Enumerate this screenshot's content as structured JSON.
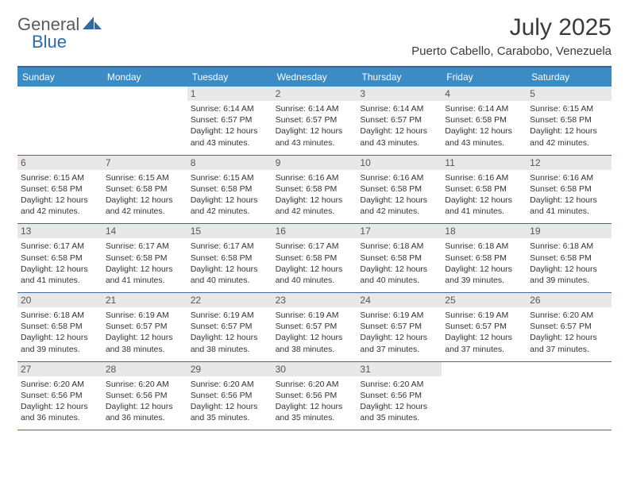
{
  "logo": {
    "part1": "General",
    "part2": "Blue"
  },
  "title": "July 2025",
  "location": "Puerto Cabello, Carabobo, Venezuela",
  "colors": {
    "header_bg": "#3b8bc4",
    "border": "#2f6aa8",
    "daynum_bg": "#e8e8e8",
    "text": "#333333",
    "logo_gray": "#5a5a5a",
    "logo_blue": "#2f6aa8"
  },
  "day_names": [
    "Sunday",
    "Monday",
    "Tuesday",
    "Wednesday",
    "Thursday",
    "Friday",
    "Saturday"
  ],
  "weeks": [
    [
      {
        "n": "",
        "sr": "",
        "ss": "",
        "dl": ""
      },
      {
        "n": "",
        "sr": "",
        "ss": "",
        "dl": ""
      },
      {
        "n": "1",
        "sr": "6:14 AM",
        "ss": "6:57 PM",
        "dl": "12 hours and 43 minutes."
      },
      {
        "n": "2",
        "sr": "6:14 AM",
        "ss": "6:57 PM",
        "dl": "12 hours and 43 minutes."
      },
      {
        "n": "3",
        "sr": "6:14 AM",
        "ss": "6:57 PM",
        "dl": "12 hours and 43 minutes."
      },
      {
        "n": "4",
        "sr": "6:14 AM",
        "ss": "6:58 PM",
        "dl": "12 hours and 43 minutes."
      },
      {
        "n": "5",
        "sr": "6:15 AM",
        "ss": "6:58 PM",
        "dl": "12 hours and 42 minutes."
      }
    ],
    [
      {
        "n": "6",
        "sr": "6:15 AM",
        "ss": "6:58 PM",
        "dl": "12 hours and 42 minutes."
      },
      {
        "n": "7",
        "sr": "6:15 AM",
        "ss": "6:58 PM",
        "dl": "12 hours and 42 minutes."
      },
      {
        "n": "8",
        "sr": "6:15 AM",
        "ss": "6:58 PM",
        "dl": "12 hours and 42 minutes."
      },
      {
        "n": "9",
        "sr": "6:16 AM",
        "ss": "6:58 PM",
        "dl": "12 hours and 42 minutes."
      },
      {
        "n": "10",
        "sr": "6:16 AM",
        "ss": "6:58 PM",
        "dl": "12 hours and 42 minutes."
      },
      {
        "n": "11",
        "sr": "6:16 AM",
        "ss": "6:58 PM",
        "dl": "12 hours and 41 minutes."
      },
      {
        "n": "12",
        "sr": "6:16 AM",
        "ss": "6:58 PM",
        "dl": "12 hours and 41 minutes."
      }
    ],
    [
      {
        "n": "13",
        "sr": "6:17 AM",
        "ss": "6:58 PM",
        "dl": "12 hours and 41 minutes."
      },
      {
        "n": "14",
        "sr": "6:17 AM",
        "ss": "6:58 PM",
        "dl": "12 hours and 41 minutes."
      },
      {
        "n": "15",
        "sr": "6:17 AM",
        "ss": "6:58 PM",
        "dl": "12 hours and 40 minutes."
      },
      {
        "n": "16",
        "sr": "6:17 AM",
        "ss": "6:58 PM",
        "dl": "12 hours and 40 minutes."
      },
      {
        "n": "17",
        "sr": "6:18 AM",
        "ss": "6:58 PM",
        "dl": "12 hours and 40 minutes."
      },
      {
        "n": "18",
        "sr": "6:18 AM",
        "ss": "6:58 PM",
        "dl": "12 hours and 39 minutes."
      },
      {
        "n": "19",
        "sr": "6:18 AM",
        "ss": "6:58 PM",
        "dl": "12 hours and 39 minutes."
      }
    ],
    [
      {
        "n": "20",
        "sr": "6:18 AM",
        "ss": "6:58 PM",
        "dl": "12 hours and 39 minutes."
      },
      {
        "n": "21",
        "sr": "6:19 AM",
        "ss": "6:57 PM",
        "dl": "12 hours and 38 minutes."
      },
      {
        "n": "22",
        "sr": "6:19 AM",
        "ss": "6:57 PM",
        "dl": "12 hours and 38 minutes."
      },
      {
        "n": "23",
        "sr": "6:19 AM",
        "ss": "6:57 PM",
        "dl": "12 hours and 38 minutes."
      },
      {
        "n": "24",
        "sr": "6:19 AM",
        "ss": "6:57 PM",
        "dl": "12 hours and 37 minutes."
      },
      {
        "n": "25",
        "sr": "6:19 AM",
        "ss": "6:57 PM",
        "dl": "12 hours and 37 minutes."
      },
      {
        "n": "26",
        "sr": "6:20 AM",
        "ss": "6:57 PM",
        "dl": "12 hours and 37 minutes."
      }
    ],
    [
      {
        "n": "27",
        "sr": "6:20 AM",
        "ss": "6:56 PM",
        "dl": "12 hours and 36 minutes."
      },
      {
        "n": "28",
        "sr": "6:20 AM",
        "ss": "6:56 PM",
        "dl": "12 hours and 36 minutes."
      },
      {
        "n": "29",
        "sr": "6:20 AM",
        "ss": "6:56 PM",
        "dl": "12 hours and 35 minutes."
      },
      {
        "n": "30",
        "sr": "6:20 AM",
        "ss": "6:56 PM",
        "dl": "12 hours and 35 minutes."
      },
      {
        "n": "31",
        "sr": "6:20 AM",
        "ss": "6:56 PM",
        "dl": "12 hours and 35 minutes."
      },
      {
        "n": "",
        "sr": "",
        "ss": "",
        "dl": ""
      },
      {
        "n": "",
        "sr": "",
        "ss": "",
        "dl": ""
      }
    ]
  ],
  "labels": {
    "sunrise": "Sunrise:",
    "sunset": "Sunset:",
    "daylight": "Daylight:"
  }
}
